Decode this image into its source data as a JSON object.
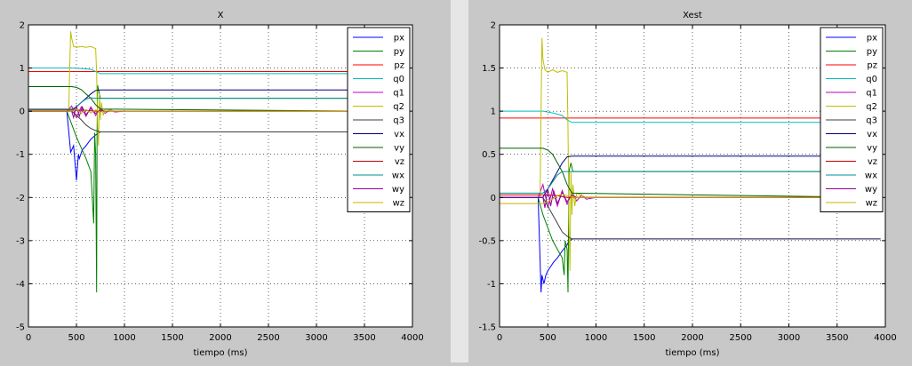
{
  "chart_data": [
    {
      "type": "line",
      "title": "X",
      "xlabel": "tiempo (ms)",
      "ylabel": "",
      "xlim": [
        0,
        4000
      ],
      "ylim": [
        -5,
        2
      ],
      "xticks": [
        0,
        500,
        1000,
        1500,
        2000,
        2500,
        3000,
        3500,
        4000
      ],
      "yticks": [
        -5,
        -4,
        -3,
        -2,
        -1,
        0,
        1,
        2
      ],
      "grid": true,
      "legend_position": "top-right",
      "series": [
        {
          "name": "px",
          "color": "#0000ff",
          "x": [
            0,
            400,
            440,
            470,
            500,
            510,
            520,
            530,
            560,
            600,
            650,
            700,
            750,
            3500
          ],
          "y": [
            0.0,
            0.0,
            -0.95,
            -0.8,
            -1.6,
            -1.3,
            -1.0,
            -1.1,
            -0.9,
            -0.8,
            -0.65,
            -0.55,
            -0.48,
            -0.48
          ]
        },
        {
          "name": "py",
          "color": "#008000",
          "x": [
            0,
            400,
            450,
            500,
            550,
            600,
            650,
            680,
            690,
            700,
            710,
            715,
            720,
            730,
            750,
            770,
            800,
            3500
          ],
          "y": [
            0.0,
            0.0,
            -0.3,
            -0.6,
            -0.85,
            -1.1,
            -1.4,
            -2.6,
            -0.5,
            -1.0,
            -4.2,
            -0.5,
            0.6,
            0.5,
            0.3,
            0.3,
            0.3,
            0.3
          ]
        },
        {
          "name": "pz",
          "color": "#ff0000",
          "x": [
            0,
            700,
            3500
          ],
          "y": [
            0.92,
            0.92,
            0.92
          ]
        },
        {
          "name": "q0",
          "color": "#00bfbf",
          "x": [
            0,
            450,
            550,
            650,
            700,
            750,
            3500
          ],
          "y": [
            1.0,
            1.0,
            0.99,
            0.97,
            0.92,
            0.87,
            0.87
          ]
        },
        {
          "name": "q1",
          "color": "#bf00bf",
          "x": [
            0,
            400,
            450,
            500,
            550,
            600,
            650,
            700,
            750,
            800,
            850,
            900,
            1000,
            3500
          ],
          "y": [
            0.0,
            0.0,
            0.12,
            -0.15,
            0.1,
            -0.12,
            0.1,
            -0.1,
            0.08,
            -0.05,
            0.04,
            -0.02,
            0.0,
            0.0
          ]
        },
        {
          "name": "q2",
          "color": "#bfbf00",
          "x": [
            0,
            420,
            430,
            440,
            450,
            470,
            500,
            550,
            600,
            650,
            700,
            710,
            720,
            730,
            740,
            750,
            760,
            780,
            800,
            900,
            1000,
            3500
          ],
          "y": [
            0.0,
            0.0,
            1.0,
            1.85,
            1.7,
            1.5,
            1.48,
            1.5,
            1.48,
            1.5,
            1.45,
            0.9,
            -0.3,
            -0.8,
            0.4,
            -0.2,
            0.2,
            -0.1,
            0.05,
            0.0,
            0.0,
            0.0
          ]
        },
        {
          "name": "q3",
          "color": "#404040",
          "x": [
            0,
            450,
            500,
            550,
            600,
            650,
            700,
            750,
            3500
          ],
          "y": [
            0.0,
            0.0,
            -0.1,
            -0.2,
            -0.32,
            -0.4,
            -0.45,
            -0.48,
            -0.48
          ]
        },
        {
          "name": "vx",
          "color": "#000080",
          "x": [
            0,
            450,
            500,
            550,
            600,
            650,
            700,
            750,
            800,
            3500
          ],
          "y": [
            0.0,
            0.0,
            0.1,
            0.2,
            0.3,
            0.4,
            0.48,
            0.49,
            0.49,
            0.49
          ]
        },
        {
          "name": "vy",
          "color": "#006000",
          "x": [
            0,
            450,
            500,
            550,
            600,
            650,
            700,
            750,
            3500
          ],
          "y": [
            0.57,
            0.57,
            0.55,
            0.5,
            0.4,
            0.3,
            0.15,
            0.05,
            0.0
          ]
        },
        {
          "name": "vz",
          "color": "#c00000",
          "x": [
            0,
            450,
            600,
            700,
            3500
          ],
          "y": [
            0.03,
            0.03,
            0.02,
            0.0,
            0.0
          ]
        },
        {
          "name": "wx",
          "color": "#009090",
          "x": [
            0,
            450,
            500,
            550,
            600,
            650,
            700,
            750,
            3500
          ],
          "y": [
            0.05,
            0.05,
            0.1,
            0.2,
            0.28,
            0.31,
            0.3,
            0.3,
            0.3
          ]
        },
        {
          "name": "wy",
          "color": "#9000a0",
          "x": [
            0,
            450,
            470,
            500,
            530,
            560,
            600,
            650,
            700,
            750,
            800,
            3500
          ],
          "y": [
            0.0,
            0.0,
            -0.15,
            0.12,
            -0.12,
            0.1,
            -0.08,
            0.06,
            -0.05,
            0.03,
            0.0,
            0.0
          ]
        },
        {
          "name": "wz",
          "color": "#c8b400",
          "x": [
            0,
            450,
            500,
            550,
            600,
            650,
            700,
            750,
            800,
            900,
            3500
          ],
          "y": [
            0.0,
            0.0,
            0.05,
            -0.05,
            0.04,
            -0.04,
            0.03,
            -0.02,
            0.01,
            0.0,
            0.0
          ]
        }
      ]
    },
    {
      "type": "line",
      "title": "Xest",
      "xlabel": "tiempo (ms)",
      "ylabel": "",
      "xlim": [
        0,
        4000
      ],
      "ylim": [
        -1.5,
        2
      ],
      "xticks": [
        0,
        500,
        1000,
        1500,
        2000,
        2500,
        3000,
        3500,
        4000
      ],
      "yticks": [
        -1.5,
        -1,
        -0.5,
        0,
        0.5,
        1,
        1.5,
        2
      ],
      "grid": true,
      "legend_position": "top-right",
      "series": [
        {
          "name": "px",
          "color": "#0000ff",
          "x": [
            0,
            400,
            430,
            440,
            460,
            480,
            500,
            530,
            560,
            600,
            650,
            700,
            720,
            760,
            3950
          ],
          "y": [
            0.0,
            0.0,
            -1.1,
            -0.9,
            -1.0,
            -0.9,
            -0.85,
            -0.8,
            -0.75,
            -0.7,
            -0.62,
            -0.55,
            -0.5,
            -0.48,
            -0.48
          ]
        },
        {
          "name": "py",
          "color": "#008000",
          "x": [
            0,
            400,
            450,
            500,
            550,
            600,
            650,
            670,
            680,
            700,
            710,
            720,
            740,
            760,
            800,
            3950
          ],
          "y": [
            0.0,
            0.0,
            -0.2,
            -0.35,
            -0.5,
            -0.6,
            -0.7,
            -0.9,
            -0.5,
            -0.6,
            -1.1,
            0.3,
            0.4,
            0.3,
            0.3,
            0.3
          ]
        },
        {
          "name": "pz",
          "color": "#ff0000",
          "x": [
            0,
            700,
            3950
          ],
          "y": [
            0.92,
            0.92,
            0.92
          ]
        },
        {
          "name": "q0",
          "color": "#00bfbf",
          "x": [
            0,
            450,
            550,
            650,
            700,
            750,
            3950
          ],
          "y": [
            1.0,
            1.0,
            0.98,
            0.95,
            0.9,
            0.87,
            0.87
          ]
        },
        {
          "name": "q1",
          "color": "#bf00bf",
          "x": [
            0,
            400,
            450,
            500,
            550,
            600,
            650,
            700,
            750,
            800,
            850,
            900,
            1000,
            3950
          ],
          "y": [
            0.0,
            0.0,
            0.15,
            -0.12,
            0.1,
            -0.1,
            0.08,
            -0.08,
            0.06,
            -0.04,
            0.03,
            -0.02,
            0.0,
            0.0
          ]
        },
        {
          "name": "q2",
          "color": "#bfbf00",
          "x": [
            0,
            420,
            430,
            440,
            450,
            470,
            500,
            550,
            600,
            650,
            700,
            710,
            720,
            730,
            740,
            750,
            760,
            780,
            800,
            900,
            1000,
            3950
          ],
          "y": [
            0.0,
            0.0,
            1.0,
            1.85,
            1.6,
            1.48,
            1.45,
            1.48,
            1.45,
            1.47,
            1.45,
            0.8,
            -0.3,
            -0.85,
            0.3,
            -0.2,
            0.15,
            -0.1,
            0.05,
            0.0,
            0.0,
            0.0
          ]
        },
        {
          "name": "q3",
          "color": "#404040",
          "x": [
            0,
            450,
            500,
            550,
            600,
            650,
            700,
            750,
            3950
          ],
          "y": [
            0.0,
            0.0,
            -0.1,
            -0.2,
            -0.3,
            -0.4,
            -0.45,
            -0.48,
            -0.48
          ]
        },
        {
          "name": "vx",
          "color": "#000080",
          "x": [
            0,
            450,
            500,
            550,
            600,
            650,
            700,
            750,
            800,
            3950
          ],
          "y": [
            0.0,
            0.0,
            0.1,
            0.2,
            0.3,
            0.4,
            0.47,
            0.48,
            0.48,
            0.48
          ]
        },
        {
          "name": "vy",
          "color": "#006000",
          "x": [
            0,
            450,
            500,
            550,
            600,
            650,
            700,
            750,
            3950
          ],
          "y": [
            0.57,
            0.57,
            0.55,
            0.5,
            0.4,
            0.3,
            0.15,
            0.05,
            0.0
          ]
        },
        {
          "name": "vz",
          "color": "#c00000",
          "x": [
            0,
            450,
            600,
            700,
            3950
          ],
          "y": [
            0.03,
            0.03,
            0.02,
            0.0,
            0.0
          ]
        },
        {
          "name": "wx",
          "color": "#009090",
          "x": [
            0,
            450,
            500,
            550,
            600,
            650,
            700,
            750,
            3950
          ],
          "y": [
            0.05,
            0.05,
            0.1,
            0.18,
            0.26,
            0.3,
            0.3,
            0.3,
            0.3
          ]
        },
        {
          "name": "wy",
          "color": "#9000a0",
          "x": [
            0,
            450,
            470,
            500,
            530,
            560,
            600,
            650,
            700,
            750,
            800,
            3950
          ],
          "y": [
            0.0,
            0.0,
            -0.12,
            0.1,
            -0.1,
            0.08,
            -0.07,
            0.06,
            -0.05,
            0.03,
            0.0,
            0.0
          ]
        },
        {
          "name": "wz",
          "color": "#c8b400",
          "x": [
            0,
            450,
            500,
            550,
            600,
            650,
            700,
            750,
            800,
            900,
            3950
          ],
          "y": [
            -0.07,
            -0.07,
            -0.05,
            -0.02,
            0.02,
            0.04,
            0.02,
            0.0,
            0.0,
            0.0,
            0.0
          ]
        }
      ]
    }
  ]
}
